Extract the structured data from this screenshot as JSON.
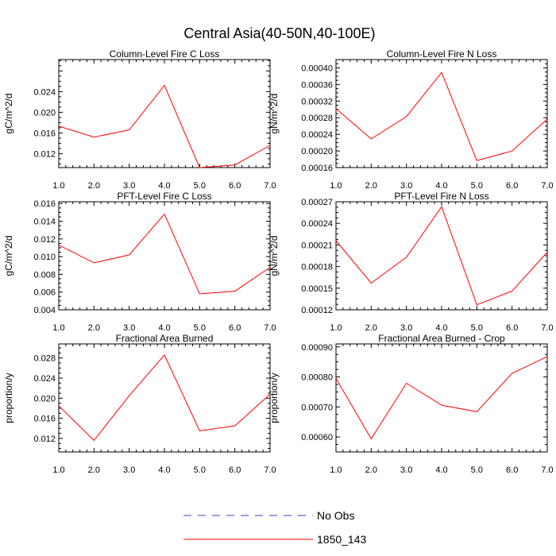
{
  "figure_title": "Central Asia(40-50N,40-100E)",
  "legend": {
    "entries": [
      {
        "label": "No Obs",
        "color": "#3b3bd0",
        "dashed": true
      },
      {
        "label": "1850_143",
        "color": "#ff0000",
        "dashed": false
      }
    ]
  },
  "chart_data": [
    {
      "type": "line",
      "title": "Column-Level Fire C Loss",
      "ylabel": "gC/m^2/d",
      "xlim": [
        1,
        7
      ],
      "ylim": [
        0.0093,
        0.0302
      ],
      "xticks": [
        1,
        2,
        3,
        4,
        5,
        6,
        7
      ],
      "xtick_labels": [
        "1.0",
        "2.0",
        "3.0",
        "4.0",
        "5.0",
        "6.0",
        "7.0"
      ],
      "yticks": [
        0.012,
        0.016,
        0.02,
        0.024
      ],
      "ytick_labels": [
        "0.012",
        "0.016",
        "0.020",
        "0.024"
      ],
      "series": [
        {
          "name": "1850_143",
          "x": [
            1,
            2,
            3,
            4,
            5,
            6,
            7
          ],
          "values": [
            0.0173,
            0.0152,
            0.0166,
            0.0252,
            0.0093,
            0.0098,
            0.0136
          ]
        }
      ]
    },
    {
      "type": "line",
      "title": "Column-Level Fire N Loss",
      "ylabel": "gN/m^2/d",
      "xlim": [
        1,
        7
      ],
      "ylim": [
        0.00016,
        0.00042
      ],
      "xticks": [
        1,
        2,
        3,
        4,
        5,
        6,
        7
      ],
      "xtick_labels": [
        "1.0",
        "2.0",
        "3.0",
        "4.0",
        "5.0",
        "6.0",
        "7.0"
      ],
      "yticks": [
        0.00016,
        0.0002,
        0.00024,
        0.00028,
        0.00032,
        0.00036,
        0.0004
      ],
      "ytick_labels": [
        "0.00016",
        "0.00020",
        "0.00024",
        "0.00028",
        "0.00032",
        "0.00036",
        "0.00040"
      ],
      "series": [
        {
          "name": "1850_143",
          "x": [
            1,
            2,
            3,
            4,
            5,
            6,
            7
          ],
          "values": [
            0.000302,
            0.000229,
            0.000283,
            0.000389,
            0.000177,
            0.0002,
            0.000277
          ]
        }
      ]
    },
    {
      "type": "line",
      "title": "PFT-Level Fire C Loss",
      "ylabel": "gC/m^2/d",
      "xlim": [
        1,
        7
      ],
      "ylim": [
        0.004,
        0.0162
      ],
      "xticks": [
        1,
        2,
        3,
        4,
        5,
        6,
        7
      ],
      "xtick_labels": [
        "1.0",
        "2.0",
        "3.0",
        "4.0",
        "5.0",
        "6.0",
        "7.0"
      ],
      "yticks": [
        0.004,
        0.006,
        0.008,
        0.01,
        0.012,
        0.014,
        0.016
      ],
      "ytick_labels": [
        "0.004",
        "0.006",
        "0.008",
        "0.010",
        "0.012",
        "0.014",
        "0.016"
      ],
      "series": [
        {
          "name": "1850_143",
          "x": [
            1,
            2,
            3,
            4,
            5,
            6,
            7
          ],
          "values": [
            0.0113,
            0.0093,
            0.0102,
            0.0148,
            0.0058,
            0.0061,
            0.0088
          ]
        }
      ]
    },
    {
      "type": "line",
      "title": "PFT-Level Fire N Loss",
      "ylabel": "gN/m^2/d",
      "xlim": [
        1,
        7
      ],
      "ylim": [
        0.00012,
        0.00027
      ],
      "xticks": [
        1,
        2,
        3,
        4,
        5,
        6,
        7
      ],
      "xtick_labels": [
        "1.0",
        "2.0",
        "3.0",
        "4.0",
        "5.0",
        "6.0",
        "7.0"
      ],
      "yticks": [
        0.00012,
        0.00015,
        0.00018,
        0.00021,
        0.00024,
        0.00027
      ],
      "ytick_labels": [
        "0.00012",
        "0.00015",
        "0.00018",
        "0.00021",
        "0.00024",
        "0.00027"
      ],
      "series": [
        {
          "name": "1850_143",
          "x": [
            1,
            2,
            3,
            4,
            5,
            6,
            7
          ],
          "values": [
            0.000216,
            0.000157,
            0.000193,
            0.000263,
            0.000127,
            0.000146,
            0.0002
          ]
        }
      ]
    },
    {
      "type": "line",
      "title": "Fractional Area Burned",
      "ylabel": "proportion/y",
      "xlim": [
        1,
        7
      ],
      "ylim": [
        0.0093,
        0.0308
      ],
      "xticks": [
        1,
        2,
        3,
        4,
        5,
        6,
        7
      ],
      "xtick_labels": [
        "1.0",
        "2.0",
        "3.0",
        "4.0",
        "5.0",
        "6.0",
        "7.0"
      ],
      "yticks": [
        0.012,
        0.016,
        0.02,
        0.024,
        0.028
      ],
      "ytick_labels": [
        "0.012",
        "0.016",
        "0.020",
        "0.024",
        "0.028"
      ],
      "series": [
        {
          "name": "1850_143",
          "x": [
            1,
            2,
            3,
            4,
            5,
            6,
            7
          ],
          "values": [
            0.0185,
            0.0116,
            0.0205,
            0.0286,
            0.0135,
            0.0145,
            0.0208
          ]
        }
      ]
    },
    {
      "type": "line",
      "title": "Fractional Area Burned - Crop",
      "ylabel": "proportion/y",
      "xlim": [
        1,
        7
      ],
      "ylim": [
        0.00055,
        0.00091
      ],
      "xticks": [
        1,
        2,
        3,
        4,
        5,
        6,
        7
      ],
      "xtick_labels": [
        "1.0",
        "2.0",
        "3.0",
        "4.0",
        "5.0",
        "6.0",
        "7.0"
      ],
      "yticks": [
        0.0006,
        0.0007,
        0.0008,
        0.0009
      ],
      "ytick_labels": [
        "0.00060",
        "0.00070",
        "0.00080",
        "0.00090"
      ],
      "series": [
        {
          "name": "1850_143",
          "x": [
            1,
            2,
            3,
            4,
            5,
            6,
            7
          ],
          "values": [
            0.000795,
            0.000594,
            0.000779,
            0.000706,
            0.000684,
            0.000812,
            0.000868
          ]
        }
      ]
    }
  ]
}
